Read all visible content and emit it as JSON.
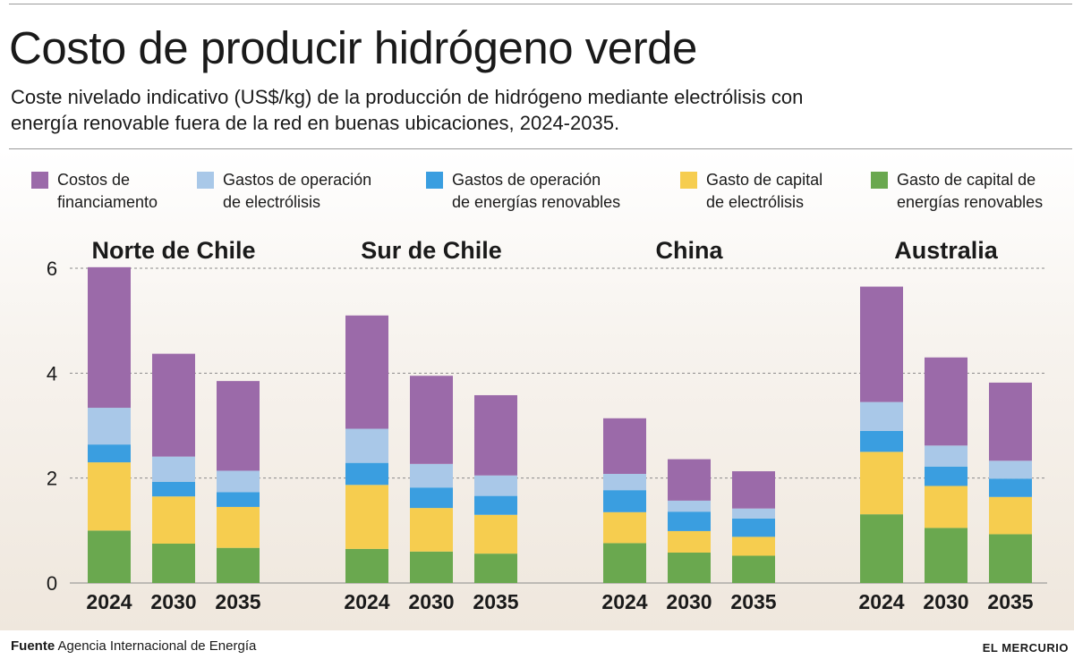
{
  "header": {
    "title": "Costo de producir hidrógeno verde",
    "subtitle": "Coste nivelado indicativo (US$/kg) de la producción de hidrógeno mediante electrólisis con energía renovable fuera de la red en buenas ubicaciones, 2024-2035."
  },
  "legend": [
    {
      "line1": "Costos de",
      "line2": "financiamento",
      "color": "#9b6aa9"
    },
    {
      "line1": "Gastos de operación",
      "line2": "de electrólisis",
      "color": "#a9c8e8"
    },
    {
      "line1": "Gastos de operación",
      "line2": "de energías renovables",
      "color": "#3a9ee0"
    },
    {
      "line1": "Gasto de capital",
      "line2": "de electrólisis",
      "color": "#f6cd4f"
    },
    {
      "line1": "Gasto de capital de",
      "line2": "energías renovables",
      "color": "#6aa84f"
    }
  ],
  "footer": {
    "source_label": "Fuente",
    "source_text": "Agencia Internacional de Energía",
    "brand": "EL MERCURIO"
  },
  "chart_data": {
    "type": "bar",
    "stacked": true,
    "unit": "US$/kg",
    "ylim": [
      0,
      6
    ],
    "yticks": [
      0,
      2,
      4,
      6
    ],
    "grid": "horizontal dashed",
    "legend_position": "top",
    "groups": [
      {
        "name": "Norte de Chile",
        "years": [
          "2024",
          "2030",
          "2035"
        ]
      },
      {
        "name": "Sur de Chile",
        "years": [
          "2024",
          "2030",
          "2035"
        ]
      },
      {
        "name": "China",
        "years": [
          "2024",
          "2030",
          "2035"
        ]
      },
      {
        "name": "Australia",
        "years": [
          "2024",
          "2030",
          "2035"
        ]
      }
    ],
    "series": [
      {
        "name": "Gasto de capital de energías renovables",
        "color": "#6aa84f",
        "values": [
          [
            1.0,
            0.75,
            0.67
          ],
          [
            0.65,
            0.6,
            0.56
          ],
          [
            0.76,
            0.58,
            0.52
          ],
          [
            1.31,
            1.05,
            0.93
          ]
        ]
      },
      {
        "name": "Gasto de capital de electrólisis",
        "color": "#f6cd4f",
        "values": [
          [
            1.3,
            0.9,
            0.78
          ],
          [
            1.22,
            0.83,
            0.74
          ],
          [
            0.59,
            0.41,
            0.36
          ],
          [
            1.19,
            0.8,
            0.71
          ]
        ]
      },
      {
        "name": "Gastos de operación de energías renovables",
        "color": "#3a9ee0",
        "values": [
          [
            0.34,
            0.28,
            0.28
          ],
          [
            0.42,
            0.39,
            0.36
          ],
          [
            0.42,
            0.37,
            0.35
          ],
          [
            0.4,
            0.37,
            0.35
          ]
        ]
      },
      {
        "name": "Gastos de operación de electrólisis",
        "color": "#a9c8e8",
        "values": [
          [
            0.7,
            0.48,
            0.41
          ],
          [
            0.65,
            0.45,
            0.39
          ],
          [
            0.31,
            0.21,
            0.19
          ],
          [
            0.55,
            0.4,
            0.34
          ]
        ]
      },
      {
        "name": "Costos de financiamento",
        "color": "#9b6aa9",
        "values": [
          [
            2.68,
            1.96,
            1.71
          ],
          [
            2.16,
            1.68,
            1.53
          ],
          [
            1.06,
            0.79,
            0.71
          ],
          [
            2.2,
            1.68,
            1.49
          ]
        ]
      }
    ]
  }
}
